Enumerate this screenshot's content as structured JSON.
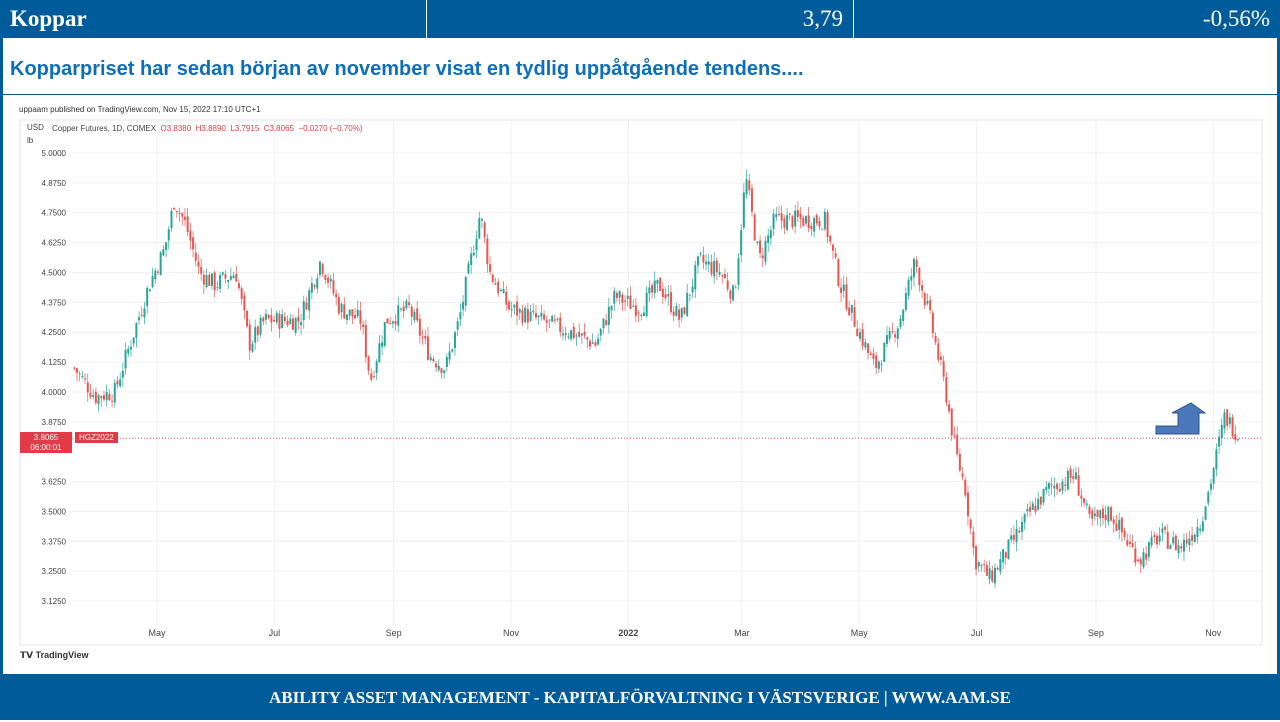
{
  "header": {
    "name": "Koppar",
    "price": "3,79",
    "change": "-0,56%"
  },
  "headline": "Kopparpriset har sedan början av november visat en tydlig uppåtgående tendens....",
  "footer": "ABILITY ASSET MANAGEMENT -  KAPITALFÖRVALTNING I VÄSTSVERIGE   |   WWW.AAM.SE",
  "chart_data": {
    "type": "candlestick",
    "published": "uppaam published on TradingView.com, Nov 15, 2022 17:10 UTC+1",
    "instrument": "Copper Futures, 1D, COMEX",
    "ohlc": {
      "o": "O3.8380",
      "h": "H3.8890",
      "l": "L3.7915",
      "c": "C3.8065",
      "chg": "−0.0270 (−0.70%)"
    },
    "currency": "USD",
    "unit": "lb",
    "last_price": "3.8065",
    "countdown": "06:00:01",
    "symbol": "HGZ2022",
    "ylim": [
      3.0625,
      5.0625
    ],
    "yticks": [
      "5.0000",
      "4.8750",
      "4.7500",
      "4.6250",
      "4.5000",
      "4.3750",
      "4.2500",
      "4.1250",
      "4.0000",
      "3.8750",
      "3.6250",
      "3.5000",
      "3.3750",
      "3.2500",
      "3.1250"
    ],
    "xticks": [
      {
        "label": "May",
        "date": "2021-05-01"
      },
      {
        "label": "Jul",
        "date": "2021-07-01"
      },
      {
        "label": "Sep",
        "date": "2021-09-01"
      },
      {
        "label": "Nov",
        "date": "2021-11-01"
      },
      {
        "label": "2022",
        "date": "2022-01-01"
      },
      {
        "label": "Mar",
        "date": "2022-03-01"
      },
      {
        "label": "May",
        "date": "2022-05-01"
      },
      {
        "label": "Jul",
        "date": "2022-07-01"
      },
      {
        "label": "Sep",
        "date": "2022-09-01"
      },
      {
        "label": "Nov",
        "date": "2022-11-01"
      }
    ],
    "approx_close": [
      [
        "2021-03-19",
        4.1
      ],
      [
        "2021-03-30",
        3.98
      ],
      [
        "2021-04-09",
        4.0
      ],
      [
        "2021-04-17",
        4.2
      ],
      [
        "2021-04-27",
        4.45
      ],
      [
        "2021-05-05",
        4.6
      ],
      [
        "2021-05-10",
        4.8
      ],
      [
        "2021-05-16",
        4.7
      ],
      [
        "2021-05-23",
        4.5
      ],
      [
        "2021-05-31",
        4.45
      ],
      [
        "2021-06-11",
        4.5
      ],
      [
        "2021-06-18",
        4.2
      ],
      [
        "2021-06-26",
        4.3
      ],
      [
        "2021-07-14",
        4.3
      ],
      [
        "2021-07-25",
        4.55
      ],
      [
        "2021-08-04",
        4.35
      ],
      [
        "2021-08-15",
        4.3
      ],
      [
        "2021-08-20",
        4.05
      ],
      [
        "2021-08-28",
        4.3
      ],
      [
        "2021-09-09",
        4.35
      ],
      [
        "2021-09-20",
        4.15
      ],
      [
        "2021-09-28",
        4.1
      ],
      [
        "2021-10-05",
        4.3
      ],
      [
        "2021-10-16",
        4.75
      ],
      [
        "2021-10-21",
        4.5
      ],
      [
        "2021-10-31",
        4.35
      ],
      [
        "2021-11-16",
        4.3
      ],
      [
        "2021-12-02",
        4.25
      ],
      [
        "2021-12-15",
        4.2
      ],
      [
        "2021-12-25",
        4.4
      ],
      [
        "2022-01-07",
        4.35
      ],
      [
        "2022-01-17",
        4.45
      ],
      [
        "2022-01-28",
        4.3
      ],
      [
        "2022-02-07",
        4.55
      ],
      [
        "2022-02-18",
        4.5
      ],
      [
        "2022-02-25",
        4.4
      ],
      [
        "2022-03-03",
        4.9
      ],
      [
        "2022-03-10",
        4.55
      ],
      [
        "2022-03-18",
        4.72
      ],
      [
        "2022-03-31",
        4.72
      ],
      [
        "2022-04-13",
        4.72
      ],
      [
        "2022-04-21",
        4.45
      ],
      [
        "2022-05-01",
        4.25
      ],
      [
        "2022-05-09",
        4.1
      ],
      [
        "2022-05-22",
        4.3
      ],
      [
        "2022-05-30",
        4.55
      ],
      [
        "2022-06-07",
        4.3
      ],
      [
        "2022-06-15",
        4.0
      ],
      [
        "2022-06-20",
        3.75
      ],
      [
        "2022-06-25",
        3.6
      ],
      [
        "2022-06-30",
        3.3
      ],
      [
        "2022-07-08",
        3.22
      ],
      [
        "2022-07-18",
        3.35
      ],
      [
        "2022-07-29",
        3.5
      ],
      [
        "2022-08-08",
        3.6
      ],
      [
        "2022-08-21",
        3.65
      ],
      [
        "2022-08-29",
        3.45
      ],
      [
        "2022-09-08",
        3.5
      ],
      [
        "2022-09-19",
        3.35
      ],
      [
        "2022-09-24",
        3.3
      ],
      [
        "2022-10-04",
        3.4
      ],
      [
        "2022-10-15",
        3.35
      ],
      [
        "2022-10-25",
        3.45
      ],
      [
        "2022-10-30",
        3.6
      ],
      [
        "2022-11-07",
        3.9
      ],
      [
        "2022-11-15",
        3.81
      ]
    ],
    "up_color": "#26a69a",
    "down_color": "#ef5350",
    "annotation": "up-arrow"
  },
  "branding": "TradingView"
}
